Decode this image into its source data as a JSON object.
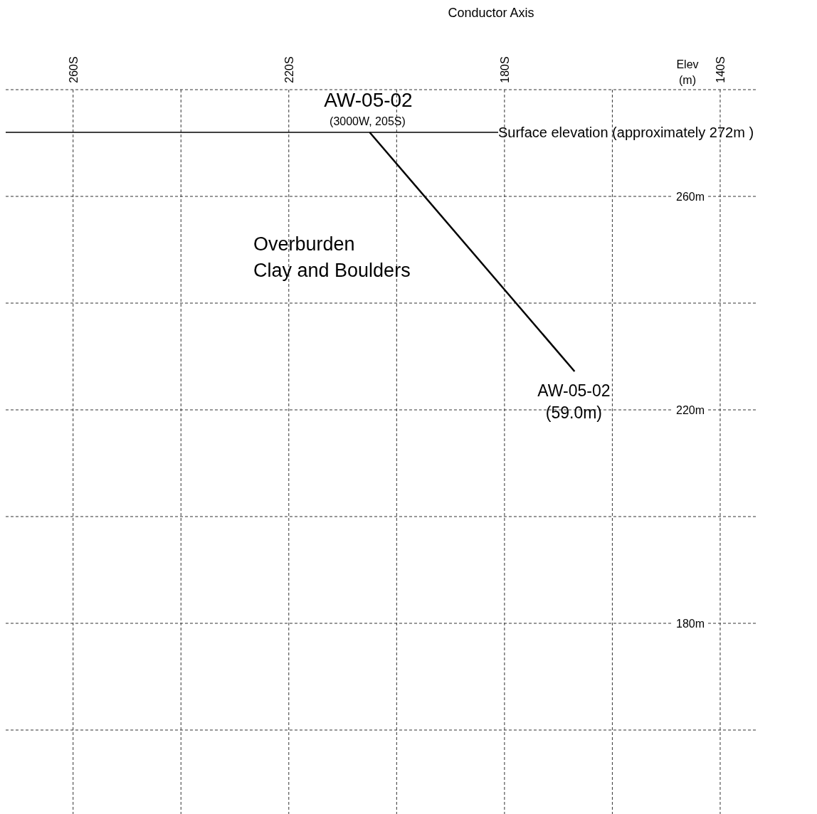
{
  "chart_data": {
    "type": "line",
    "title": "Conductor Axis",
    "ylabel": "Elev (m)",
    "xlim": [
      272.5,
      133
    ],
    "ylim": [
      160,
      280
    ],
    "xticks": [
      {
        "value": 260,
        "label": "260S"
      },
      {
        "value": 240,
        "label": null
      },
      {
        "value": 220,
        "label": "220S"
      },
      {
        "value": 200,
        "label": null
      },
      {
        "value": 180,
        "label": "180S"
      },
      {
        "value": 160,
        "label": null
      },
      {
        "value": 140,
        "label": "140S"
      }
    ],
    "yticks": [
      {
        "value": 280,
        "label": null
      },
      {
        "value": 260,
        "label": "260m"
      },
      {
        "value": 240,
        "label": null
      },
      {
        "value": 220,
        "label": "220m"
      },
      {
        "value": 200,
        "label": null
      },
      {
        "value": 180,
        "label": "180m"
      },
      {
        "value": 160,
        "label": null
      }
    ],
    "grid": true,
    "line_style": "solid",
    "marker": "none",
    "series": [
      {
        "color": "#000000",
        "x": [
          205,
          167
        ],
        "values": [
          272,
          227.2
        ]
      }
    ],
    "ref_lines": [
      {
        "axis": "y",
        "value": 272,
        "label": "Surface elevation (approximately 272m )",
        "color": "#000000"
      }
    ],
    "annotations": [
      {
        "text": "AW-05-02\n(3000W, 205S)",
        "x": 205,
        "y": 272
      },
      "Overburden\nClay and Boulders",
      {
        "text": "AW-05-02\n(59.0m)",
        "x": 167,
        "y": 227.2
      }
    ]
  }
}
